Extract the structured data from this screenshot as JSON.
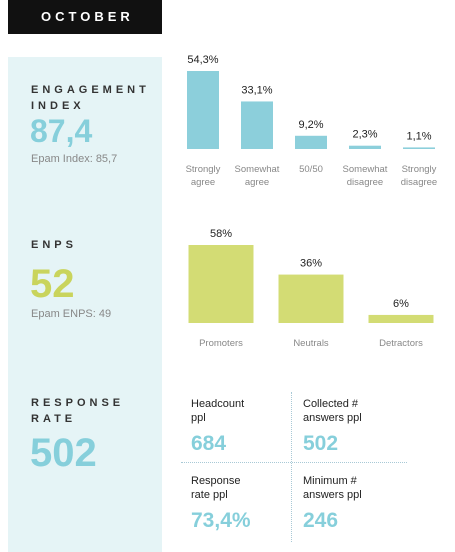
{
  "header": {
    "month": "OCTOBER"
  },
  "engagement": {
    "title": "ENGAGEMENT\nINDEX",
    "value": "87,4",
    "sub": "Epam Index: 85,7",
    "color": "#86cfdb"
  },
  "enps": {
    "title": "ENPS",
    "value": "52",
    "sub": "Epam ENPS: 49",
    "color": "#c9d45c"
  },
  "response": {
    "title": "RESPONSE\nRATE",
    "value": "502",
    "color": "#86cfdb",
    "cells": [
      {
        "label": "Headcount\nppl",
        "value": "684"
      },
      {
        "label": "Collected #\nanswers ppl",
        "value": "502"
      },
      {
        "label": "Response\nrate ppl",
        "value": "73,4%"
      },
      {
        "label": "Minimum #\nanswers ppl",
        "value": "246"
      }
    ]
  },
  "chart_data": [
    {
      "type": "bar",
      "categories": [
        "Strongly\nagree",
        "Somewhat\nagree",
        "50/50",
        "Somewhat\ndisagree",
        "Strongly\ndisagree"
      ],
      "values": [
        54.3,
        33.1,
        9.2,
        2.3,
        1.1
      ],
      "labels": [
        "54,3%",
        "33,1%",
        "9,2%",
        "2,3%",
        "1,1%"
      ],
      "color": "#8ccfdb"
    },
    {
      "type": "bar",
      "categories": [
        "Promoters",
        "Neutrals",
        "Detractors"
      ],
      "values": [
        58,
        36,
        6
      ],
      "labels": [
        "58%",
        "36%",
        "6%"
      ],
      "color": "#d3dc74"
    }
  ]
}
